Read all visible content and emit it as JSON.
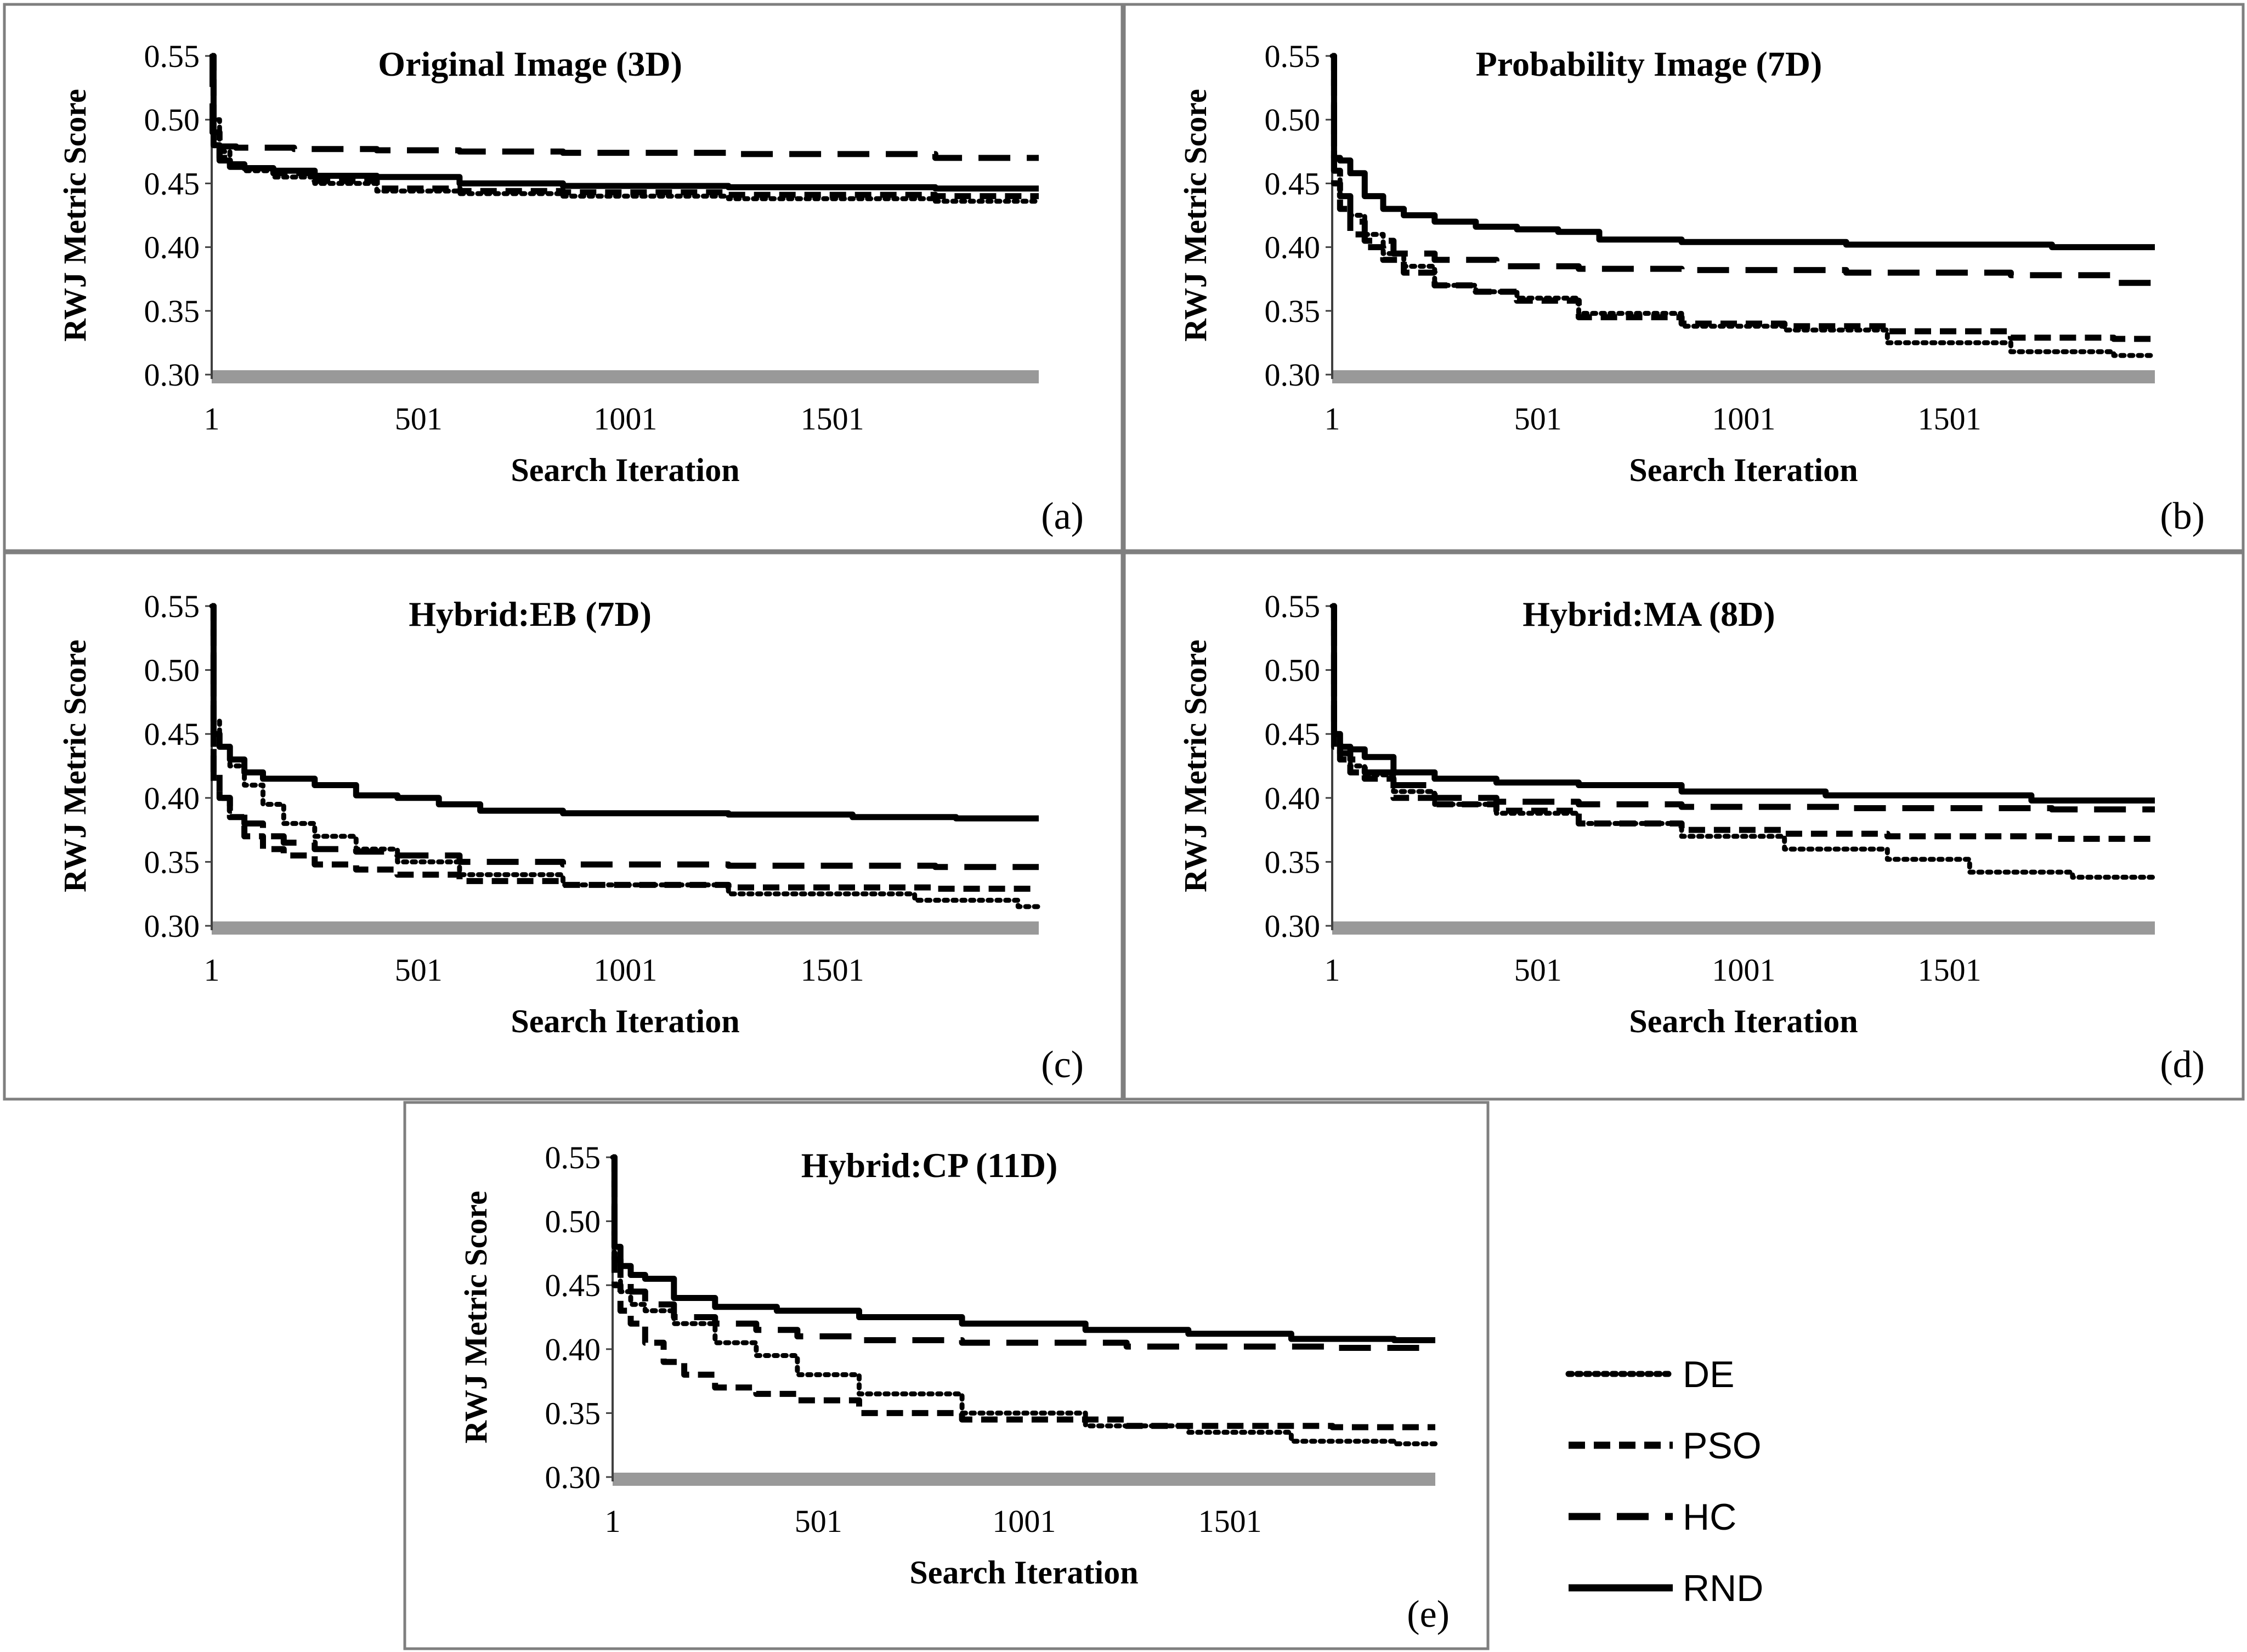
{
  "figure": {
    "legend": [
      {
        "name": "DE",
        "style": "dotted"
      },
      {
        "name": "PSO",
        "style": "short-dash"
      },
      {
        "name": "HC",
        "style": "long-dash"
      },
      {
        "name": "RND",
        "style": "solid"
      }
    ],
    "colors": {
      "line": "#000000",
      "axis_band": "#999999",
      "border": "#7f7f7f"
    }
  },
  "chart_data": [
    {
      "type": "line",
      "panel_label": "(a)",
      "title": "Original Image (3D)",
      "xlabel": "Search Iteration",
      "ylabel": "RWJ Metric Score",
      "xlim": [
        1,
        2000
      ],
      "ylim": [
        0.3,
        0.55
      ],
      "xticks": [
        "1",
        "501",
        "1001",
        "1501"
      ],
      "yticks": [
        "0.30",
        "0.35",
        "0.40",
        "0.45",
        "0.50",
        "0.55"
      ],
      "series": [
        {
          "name": "DE",
          "x": [
            1,
            10,
            30,
            60,
            100,
            200,
            300,
            500,
            700,
            1000,
            1500,
            2000
          ],
          "y": [
            0.55,
            0.5,
            0.475,
            0.465,
            0.46,
            0.455,
            0.45,
            0.444,
            0.442,
            0.44,
            0.438,
            0.436
          ]
        },
        {
          "name": "PSO",
          "x": [
            1,
            10,
            30,
            60,
            100,
            200,
            300,
            500,
            700,
            1000,
            1500,
            2000
          ],
          "y": [
            0.55,
            0.49,
            0.47,
            0.465,
            0.462,
            0.458,
            0.452,
            0.446,
            0.444,
            0.443,
            0.441,
            0.44
          ]
        },
        {
          "name": "HC",
          "x": [
            1,
            5,
            20,
            100,
            300,
            500,
            700,
            1000,
            1500,
            2000
          ],
          "y": [
            0.55,
            0.49,
            0.479,
            0.478,
            0.477,
            0.476,
            0.475,
            0.474,
            0.473,
            0.47
          ]
        },
        {
          "name": "RND",
          "x": [
            1,
            10,
            30,
            60,
            100,
            200,
            300,
            500,
            700,
            1000,
            1500,
            2000
          ],
          "y": [
            0.55,
            0.48,
            0.468,
            0.463,
            0.462,
            0.46,
            0.456,
            0.455,
            0.45,
            0.448,
            0.447,
            0.446
          ]
        }
      ]
    },
    {
      "type": "line",
      "panel_label": "(b)",
      "title": "Probability Image (7D)",
      "xlabel": "Search Iteration",
      "ylabel": "RWJ Metric Score",
      "xlim": [
        1,
        2000
      ],
      "ylim": [
        0.3,
        0.55
      ],
      "xticks": [
        "1",
        "501",
        "1001",
        "1501"
      ],
      "yticks": [
        "0.30",
        "0.35",
        "0.40",
        "0.45",
        "0.50",
        "0.55"
      ],
      "series": [
        {
          "name": "DE",
          "x": [
            1,
            10,
            30,
            60,
            100,
            150,
            200,
            300,
            400,
            500,
            700,
            1000,
            1200,
            1500,
            1800,
            2000
          ],
          "y": [
            0.55,
            0.46,
            0.44,
            0.425,
            0.41,
            0.395,
            0.385,
            0.37,
            0.365,
            0.36,
            0.348,
            0.338,
            0.335,
            0.325,
            0.318,
            0.315
          ]
        },
        {
          "name": "PSO",
          "x": [
            1,
            10,
            30,
            60,
            100,
            150,
            200,
            300,
            400,
            500,
            700,
            1000,
            1200,
            1500,
            1800,
            2000
          ],
          "y": [
            0.55,
            0.45,
            0.43,
            0.41,
            0.4,
            0.39,
            0.38,
            0.37,
            0.365,
            0.358,
            0.345,
            0.34,
            0.338,
            0.334,
            0.329,
            0.328
          ]
        },
        {
          "name": "HC",
          "x": [
            1,
            10,
            30,
            60,
            100,
            200,
            300,
            500,
            700,
            1000,
            1500,
            1800,
            2000
          ],
          "y": [
            0.55,
            0.46,
            0.44,
            0.42,
            0.405,
            0.395,
            0.39,
            0.385,
            0.383,
            0.382,
            0.38,
            0.378,
            0.372
          ]
        },
        {
          "name": "RND",
          "x": [
            1,
            10,
            30,
            60,
            100,
            150,
            200,
            300,
            400,
            500,
            600,
            700,
            1000,
            1500,
            2000
          ],
          "y": [
            0.55,
            0.47,
            0.468,
            0.458,
            0.44,
            0.43,
            0.425,
            0.42,
            0.416,
            0.414,
            0.412,
            0.406,
            0.404,
            0.402,
            0.4
          ]
        }
      ]
    },
    {
      "type": "line",
      "panel_label": "(c)",
      "title": "Hybrid:EB (7D)",
      "xlabel": "Search Iteration",
      "ylabel": "RWJ Metric Score",
      "xlim": [
        1,
        2000
      ],
      "ylim": [
        0.3,
        0.55
      ],
      "xticks": [
        "1",
        "501",
        "1001",
        "1501"
      ],
      "yticks": [
        "0.30",
        "0.35",
        "0.40",
        "0.45",
        "0.50",
        "0.55"
      ],
      "series": [
        {
          "name": "DE",
          "x": [
            1,
            10,
            30,
            60,
            100,
            150,
            200,
            300,
            400,
            500,
            700,
            1000,
            1500,
            1900,
            2000
          ],
          "y": [
            0.55,
            0.46,
            0.44,
            0.425,
            0.41,
            0.395,
            0.38,
            0.37,
            0.36,
            0.35,
            0.34,
            0.332,
            0.325,
            0.32,
            0.315
          ]
        },
        {
          "name": "PSO",
          "x": [
            1,
            10,
            30,
            60,
            100,
            150,
            200,
            300,
            400,
            500,
            700,
            1000,
            1500,
            2000
          ],
          "y": [
            0.55,
            0.42,
            0.4,
            0.385,
            0.37,
            0.36,
            0.355,
            0.348,
            0.344,
            0.34,
            0.335,
            0.332,
            0.33,
            0.329
          ]
        },
        {
          "name": "HC",
          "x": [
            1,
            10,
            30,
            60,
            100,
            150,
            200,
            300,
            400,
            500,
            700,
            1000,
            1500,
            2000
          ],
          "y": [
            0.55,
            0.41,
            0.4,
            0.39,
            0.38,
            0.37,
            0.365,
            0.36,
            0.358,
            0.355,
            0.35,
            0.348,
            0.347,
            0.346
          ]
        },
        {
          "name": "RND",
          "x": [
            1,
            10,
            30,
            60,
            100,
            150,
            200,
            300,
            400,
            500,
            600,
            700,
            1000,
            1500,
            1600,
            2000
          ],
          "y": [
            0.55,
            0.45,
            0.44,
            0.43,
            0.42,
            0.415,
            0.415,
            0.41,
            0.402,
            0.4,
            0.395,
            0.39,
            0.388,
            0.387,
            0.385,
            0.384
          ]
        }
      ]
    },
    {
      "type": "line",
      "panel_label": "(d)",
      "title": "Hybrid:MA (8D)",
      "xlabel": "Search Iteration",
      "ylabel": "RWJ Metric Score",
      "xlim": [
        1,
        2000
      ],
      "ylim": [
        0.3,
        0.55
      ],
      "xticks": [
        "1",
        "501",
        "1001",
        "1501"
      ],
      "yticks": [
        "0.30",
        "0.35",
        "0.40",
        "0.45",
        "0.50",
        "0.55"
      ],
      "series": [
        {
          "name": "DE",
          "x": [
            1,
            10,
            30,
            60,
            100,
            200,
            300,
            500,
            700,
            1000,
            1200,
            1500,
            1600,
            2000
          ],
          "y": [
            0.55,
            0.45,
            0.435,
            0.425,
            0.418,
            0.405,
            0.395,
            0.388,
            0.38,
            0.37,
            0.36,
            0.352,
            0.342,
            0.338
          ]
        },
        {
          "name": "PSO",
          "x": [
            1,
            10,
            30,
            60,
            100,
            200,
            300,
            500,
            700,
            1000,
            1200,
            1500,
            2000
          ],
          "y": [
            0.55,
            0.44,
            0.43,
            0.42,
            0.415,
            0.4,
            0.395,
            0.39,
            0.38,
            0.375,
            0.372,
            0.37,
            0.368
          ]
        },
        {
          "name": "HC",
          "x": [
            1,
            10,
            30,
            60,
            100,
            200,
            300,
            500,
            700,
            1000,
            1500,
            2000
          ],
          "y": [
            0.55,
            0.45,
            0.435,
            0.43,
            0.42,
            0.41,
            0.4,
            0.397,
            0.395,
            0.393,
            0.392,
            0.391
          ]
        },
        {
          "name": "RND",
          "x": [
            1,
            10,
            30,
            60,
            100,
            200,
            300,
            500,
            700,
            1000,
            1400,
            2000
          ],
          "y": [
            0.55,
            0.45,
            0.44,
            0.438,
            0.432,
            0.42,
            0.415,
            0.412,
            0.41,
            0.405,
            0.402,
            0.398
          ]
        }
      ]
    },
    {
      "type": "line",
      "panel_label": "(e)",
      "title": "Hybrid:CP (11D)",
      "xlabel": "Search Iteration",
      "ylabel": "RWJ Metric Score",
      "xlim": [
        1,
        2000
      ],
      "ylim": [
        0.3,
        0.55
      ],
      "xticks": [
        "1",
        "501",
        "1001",
        "1501"
      ],
      "yticks": [
        "0.30",
        "0.35",
        "0.40",
        "0.45",
        "0.50",
        "0.55"
      ],
      "series": [
        {
          "name": "DE",
          "x": [
            1,
            10,
            30,
            60,
            100,
            200,
            300,
            400,
            500,
            700,
            1000,
            1300,
            1500,
            1800,
            2000
          ],
          "y": [
            0.55,
            0.47,
            0.445,
            0.435,
            0.43,
            0.42,
            0.405,
            0.395,
            0.38,
            0.365,
            0.35,
            0.34,
            0.335,
            0.328,
            0.326
          ]
        },
        {
          "name": "PSO",
          "x": [
            1,
            10,
            30,
            60,
            100,
            150,
            200,
            300,
            400,
            500,
            700,
            1000,
            1500,
            2000
          ],
          "y": [
            0.55,
            0.45,
            0.43,
            0.42,
            0.405,
            0.39,
            0.38,
            0.37,
            0.365,
            0.36,
            0.35,
            0.345,
            0.34,
            0.339
          ]
        },
        {
          "name": "HC",
          "x": [
            1,
            10,
            30,
            60,
            100,
            200,
            300,
            400,
            500,
            700,
            1000,
            1500,
            2000
          ],
          "y": [
            0.55,
            0.47,
            0.455,
            0.445,
            0.435,
            0.425,
            0.42,
            0.415,
            0.41,
            0.407,
            0.405,
            0.402,
            0.401
          ]
        },
        {
          "name": "RND",
          "x": [
            1,
            10,
            30,
            60,
            100,
            200,
            300,
            500,
            700,
            1000,
            1300,
            1500,
            1800,
            2000
          ],
          "y": [
            0.55,
            0.48,
            0.465,
            0.458,
            0.455,
            0.44,
            0.433,
            0.43,
            0.425,
            0.42,
            0.415,
            0.412,
            0.408,
            0.407
          ]
        }
      ]
    }
  ]
}
